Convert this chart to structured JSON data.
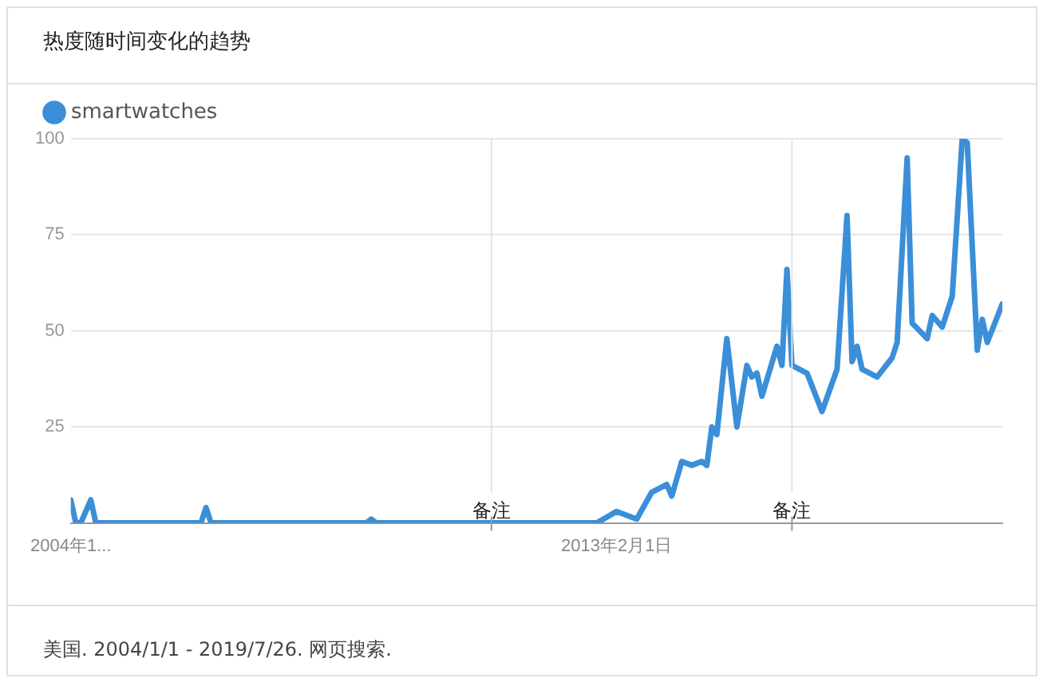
{
  "chart_data": {
    "type": "line",
    "title": "热度随时间变化的趋势",
    "x": [
      "2004-01",
      "2004-02",
      "2004-03",
      "2004-05",
      "2004-06",
      "2006-03",
      "2006-04",
      "2006-05",
      "2008-12",
      "2009-01",
      "2009-02",
      "2012-10",
      "2013-02",
      "2013-06",
      "2013-09",
      "2013-12",
      "2014-01",
      "2014-03",
      "2014-05",
      "2014-07",
      "2014-08",
      "2014-09",
      "2014-10",
      "2014-12",
      "2015-02",
      "2015-04",
      "2015-05",
      "2015-06",
      "2015-07",
      "2015-10",
      "2015-11",
      "2015-12",
      "2016-01",
      "2016-04",
      "2016-07",
      "2016-10",
      "2016-12",
      "2017-01",
      "2017-02",
      "2017-03",
      "2017-06",
      "2017-09",
      "2017-10",
      "2017-12",
      "2018-01",
      "2018-04",
      "2018-05",
      "2018-07",
      "2018-09",
      "2018-11",
      "2018-12",
      "2019-02",
      "2019-03",
      "2019-04",
      "2019-07"
    ],
    "series": [
      {
        "name": "smartwatches",
        "color": "#3a8fd8",
        "values": [
          6,
          0,
          0,
          6,
          0,
          0,
          4,
          0,
          0,
          1,
          0,
          0,
          3,
          1,
          8,
          10,
          7,
          16,
          15,
          16,
          15,
          25,
          23,
          48,
          25,
          41,
          38,
          39,
          33,
          46,
          41,
          66,
          41,
          39,
          29,
          40,
          80,
          42,
          46,
          40,
          38,
          43,
          47,
          95,
          52,
          48,
          54,
          51,
          59,
          100,
          99,
          45,
          53,
          47,
          57
        ]
      }
    ],
    "xlim": [
      "2004-01",
      "2019-07"
    ],
    "xticks": [
      {
        "value": "2004-01",
        "label": "2004年1..."
      },
      {
        "value": "2013-02",
        "label": "2013年2月1日"
      }
    ],
    "ylim": [
      0,
      100
    ],
    "yticks": [
      25,
      50,
      75,
      100
    ],
    "grid": "y",
    "legend": "top left",
    "marker": "none",
    "line_style": "solid",
    "ref_lines": [
      {
        "axis": "x",
        "value": "2011-01",
        "label": "备注"
      },
      {
        "axis": "x",
        "value": "2016-01",
        "label": "备注"
      }
    ],
    "annotations": [
      "美国. 2004/1/1 - 2019/7/26. 网页搜索."
    ]
  }
}
